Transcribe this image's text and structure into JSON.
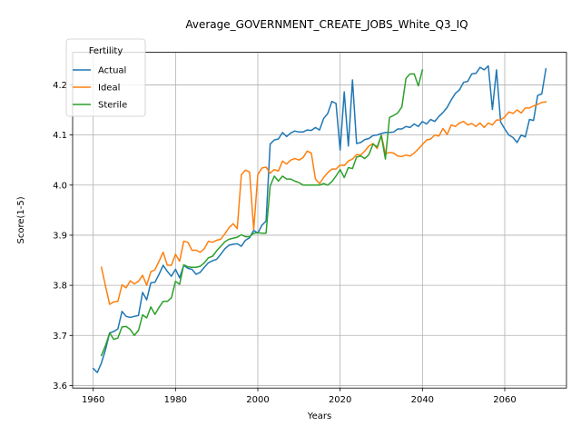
{
  "chart_data": {
    "type": "line",
    "title": "Average_GOVERNMENT_CREATE_JOBS_White_Q3_IQ",
    "xlabel": "Years",
    "ylabel": "Score(1-5)",
    "xlim": [
      1955,
      2075
    ],
    "ylim": [
      3.595,
      4.265
    ],
    "xticks": [
      1960,
      1980,
      2000,
      2020,
      2040,
      2060
    ],
    "yticks": [
      3.6,
      3.7,
      3.8,
      3.9,
      4.0,
      4.1,
      4.2
    ],
    "grid": true,
    "legend": {
      "title": "Fertility",
      "placement": "top-left"
    },
    "series": [
      {
        "name": "Actual",
        "color": "#1f77b4",
        "x": [
          1960,
          1961,
          1962,
          1963,
          1964,
          1965,
          1966,
          1967,
          1968,
          1969,
          1970,
          1971,
          1972,
          1973,
          1974,
          1975,
          1976,
          1977,
          1978,
          1979,
          1980,
          1981,
          1982,
          1983,
          1984,
          1985,
          1986,
          1987,
          1988,
          1989,
          1990,
          1991,
          1992,
          1993,
          1994,
          1995,
          1996,
          1997,
          1998,
          1999,
          2000,
          2001,
          2002,
          2003,
          2004,
          2005,
          2006,
          2007,
          2008,
          2009,
          2010,
          2011,
          2012,
          2013,
          2014,
          2015,
          2016,
          2017,
          2018,
          2019,
          2020,
          2021,
          2022,
          2023,
          2024,
          2025,
          2026,
          2027,
          2028,
          2029,
          2030,
          2031,
          2032,
          2033,
          2034,
          2035,
          2036,
          2037,
          2038,
          2039,
          2040,
          2041,
          2042,
          2043,
          2044,
          2045,
          2046,
          2047,
          2048,
          2049,
          2050,
          2051,
          2052,
          2053,
          2054,
          2055,
          2056,
          2057,
          2058,
          2059,
          2060,
          2061,
          2062,
          2063,
          2064,
          2065,
          2066,
          2067,
          2068,
          2069,
          2070
        ],
        "values": [
          3.634,
          3.626,
          3.645,
          3.672,
          3.705,
          3.708,
          3.713,
          3.748,
          3.738,
          3.736,
          3.738,
          3.74,
          3.786,
          3.771,
          3.805,
          3.806,
          3.822,
          3.84,
          3.828,
          3.818,
          3.832,
          3.815,
          3.84,
          3.834,
          3.832,
          3.822,
          3.826,
          3.836,
          3.845,
          3.849,
          3.852,
          3.862,
          3.873,
          3.88,
          3.882,
          3.883,
          3.878,
          3.89,
          3.895,
          3.91,
          3.904,
          3.92,
          3.928,
          4.082,
          4.09,
          4.092,
          4.105,
          4.097,
          4.104,
          4.108,
          4.106,
          4.106,
          4.11,
          4.109,
          4.115,
          4.11,
          4.133,
          4.143,
          4.167,
          4.163,
          4.07,
          4.186,
          4.078,
          4.21,
          4.083,
          4.085,
          4.091,
          4.093,
          4.099,
          4.1,
          4.103,
          4.105,
          4.105,
          4.106,
          4.112,
          4.112,
          4.117,
          4.115,
          4.122,
          4.117,
          4.127,
          4.122,
          4.131,
          4.127,
          4.137,
          4.145,
          4.155,
          4.17,
          4.183,
          4.19,
          4.205,
          4.207,
          4.222,
          4.223,
          4.235,
          4.23,
          4.238,
          4.151,
          4.23,
          4.126,
          4.112,
          4.1,
          4.095,
          4.085,
          4.1,
          4.096,
          4.131,
          4.129,
          4.179,
          4.182,
          4.232
        ]
      },
      {
        "name": "Ideal",
        "color": "#ff7f0e",
        "x": [
          1962,
          1963,
          1964,
          1965,
          1966,
          1967,
          1968,
          1969,
          1970,
          1971,
          1972,
          1973,
          1974,
          1975,
          1976,
          1977,
          1978,
          1979,
          1980,
          1981,
          1982,
          1983,
          1984,
          1985,
          1986,
          1987,
          1988,
          1989,
          1990,
          1991,
          1992,
          1993,
          1994,
          1995,
          1996,
          1997,
          1998,
          1999,
          2000,
          2001,
          2002,
          2003,
          2004,
          2005,
          2006,
          2007,
          2008,
          2009,
          2010,
          2011,
          2012,
          2013,
          2014,
          2015,
          2016,
          2017,
          2018,
          2019,
          2020,
          2021,
          2022,
          2023,
          2024,
          2025,
          2026,
          2027,
          2028,
          2029,
          2030,
          2031,
          2032,
          2033,
          2034,
          2035,
          2036,
          2037,
          2038,
          2039,
          2040,
          2041,
          2042,
          2043,
          2044,
          2045,
          2046,
          2047,
          2048,
          2049,
          2050,
          2051,
          2052,
          2053,
          2054,
          2055,
          2056,
          2057,
          2058,
          2059,
          2060,
          2061,
          2062,
          2063,
          2064,
          2065,
          2066,
          2067,
          2068,
          2069,
          2070
        ],
        "values": [
          3.836,
          3.798,
          3.762,
          3.767,
          3.768,
          3.801,
          3.795,
          3.809,
          3.803,
          3.808,
          3.82,
          3.8,
          3.827,
          3.831,
          3.848,
          3.866,
          3.84,
          3.84,
          3.862,
          3.848,
          3.888,
          3.886,
          3.87,
          3.87,
          3.866,
          3.873,
          3.888,
          3.886,
          3.89,
          3.892,
          3.903,
          3.915,
          3.923,
          3.913,
          4.021,
          4.03,
          4.026,
          3.911,
          4.021,
          4.034,
          4.036,
          4.024,
          4.031,
          4.028,
          4.048,
          4.042,
          4.05,
          4.053,
          4.05,
          4.055,
          4.068,
          4.064,
          4.012,
          4.003,
          4.015,
          4.025,
          4.032,
          4.032,
          4.04,
          4.039,
          4.048,
          4.052,
          4.061,
          4.06,
          4.068,
          4.078,
          4.083,
          4.073,
          4.1,
          4.063,
          4.065,
          4.064,
          4.058,
          4.057,
          4.06,
          4.058,
          4.064,
          4.072,
          4.081,
          4.09,
          4.092,
          4.1,
          4.098,
          4.113,
          4.101,
          4.12,
          4.117,
          4.124,
          4.127,
          4.12,
          4.123,
          4.117,
          4.124,
          4.115,
          4.124,
          4.12,
          4.13,
          4.13,
          4.136,
          4.146,
          4.143,
          4.15,
          4.144,
          4.154,
          4.154,
          4.158,
          4.161,
          4.165,
          4.166
        ]
      },
      {
        "name": "Sterile",
        "color": "#2ca02c",
        "x": [
          1962,
          1963,
          1964,
          1965,
          1966,
          1967,
          1968,
          1969,
          1970,
          1971,
          1972,
          1973,
          1974,
          1975,
          1976,
          1977,
          1978,
          1979,
          1980,
          1981,
          1982,
          1983,
          1984,
          1985,
          1986,
          1987,
          1988,
          1989,
          1990,
          1991,
          1992,
          1993,
          1994,
          1995,
          1996,
          1997,
          1998,
          1999,
          2000,
          2001,
          2002,
          2003,
          2004,
          2005,
          2006,
          2007,
          2008,
          2009,
          2010,
          2011,
          2012,
          2013,
          2014,
          2015,
          2016,
          2017,
          2018,
          2019,
          2020,
          2021,
          2022,
          2023,
          2024,
          2025,
          2026,
          2027,
          2028,
          2029,
          2030,
          2031,
          2032,
          2033,
          2034,
          2035,
          2036,
          2037,
          2038,
          2039,
          2040
        ],
        "values": [
          3.66,
          3.68,
          3.705,
          3.692,
          3.695,
          3.717,
          3.718,
          3.712,
          3.7,
          3.71,
          3.741,
          3.735,
          3.757,
          3.742,
          3.756,
          3.768,
          3.768,
          3.775,
          3.808,
          3.802,
          3.841,
          3.837,
          3.836,
          3.836,
          3.838,
          3.845,
          3.855,
          3.858,
          3.869,
          3.878,
          3.887,
          3.892,
          3.894,
          3.896,
          3.901,
          3.897,
          3.897,
          3.904,
          3.905,
          3.904,
          3.904,
          3.998,
          4.018,
          4.008,
          4.018,
          4.012,
          4.012,
          4.008,
          4.005,
          4.0,
          4.0,
          4.0,
          4.0,
          4.0,
          4.003,
          4.0,
          4.007,
          4.018,
          4.031,
          4.015,
          4.035,
          4.033,
          4.056,
          4.058,
          4.053,
          4.061,
          4.082,
          4.076,
          4.099,
          4.052,
          4.135,
          4.139,
          4.144,
          4.156,
          4.213,
          4.222,
          4.222,
          4.198,
          4.23
        ]
      }
    ]
  }
}
